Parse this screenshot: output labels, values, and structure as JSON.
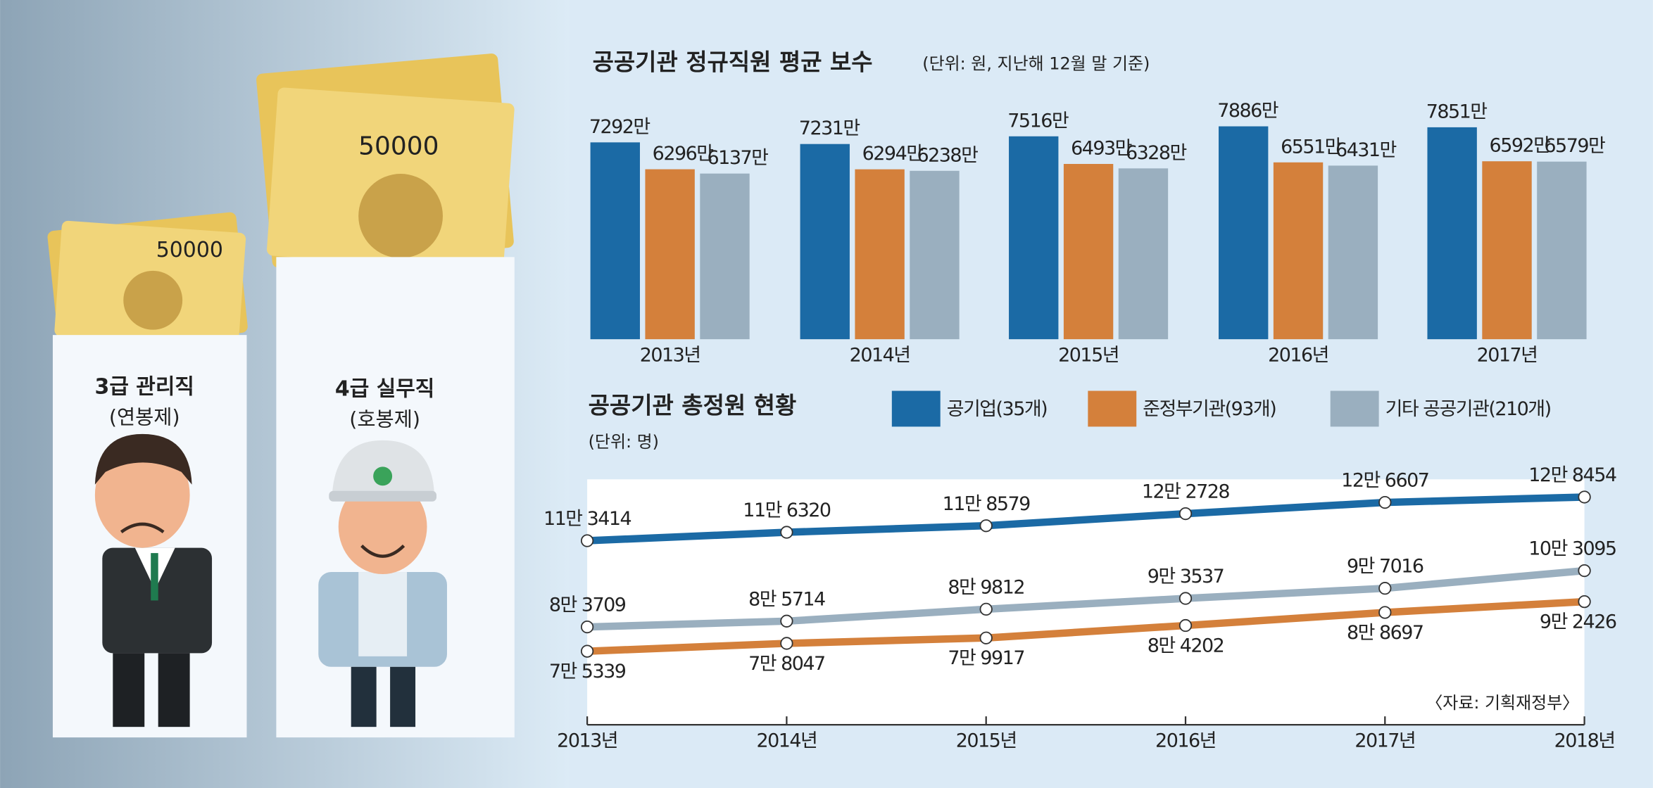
{
  "illustration": {
    "figures": [
      {
        "title": "3급 관리직",
        "subtitle": "(연봉제)"
      },
      {
        "title": "4급 실무직",
        "subtitle": "(호봉제)"
      }
    ]
  },
  "chart_data": [
    {
      "type": "bar",
      "title": "공공기관 정규직원 평균 보수",
      "subtitle": "(단위: 원, 지난해 12월 말 기준)",
      "categories": [
        "2013년",
        "2014년",
        "2015년",
        "2016년",
        "2017년"
      ],
      "series": [
        {
          "name": "공기업(35개)",
          "color": "#1b6aa5",
          "values": [
            7292,
            7231,
            7516,
            7886,
            7851
          ],
          "value_labels": [
            "7292만",
            "7231만",
            "7516만",
            "7886만",
            "7851만"
          ]
        },
        {
          "name": "준정부기관(93개)",
          "color": "#d4803b",
          "values": [
            6296,
            6294,
            6493,
            6551,
            6592
          ],
          "value_labels": [
            "6296만",
            "6294만",
            "6493만",
            "6551만",
            "6592만"
          ]
        },
        {
          "name": "기타 공공기관(210개)",
          "color": "#9aafbf",
          "values": [
            6137,
            6238,
            6328,
            6431,
            6579
          ],
          "value_labels": [
            "6137만",
            "6238만",
            "6328만",
            "6431만",
            "6579만"
          ]
        }
      ],
      "ylim": [
        0,
        8000
      ]
    },
    {
      "type": "line",
      "title": "공공기관 총정원 현황",
      "subtitle": "(단위: 명)",
      "categories": [
        "2013년",
        "2014년",
        "2015년",
        "2016년",
        "2017년",
        "2018년"
      ],
      "series": [
        {
          "color": "#1b6aa5",
          "values": [
            113414,
            116320,
            118579,
            122728,
            126607,
            128454
          ],
          "value_labels": [
            "11만 3414",
            "11만 6320",
            "11만 8579",
            "12만 2728",
            "12만 6607",
            "12만 8454"
          ]
        },
        {
          "color": "#d4803b",
          "values": [
            75339,
            78047,
            79917,
            84202,
            88697,
            92426
          ],
          "value_labels": [
            "7만 5339",
            "7만 8047",
            "7만 9917",
            "8만 4202",
            "8만 8697",
            "9만 2426"
          ]
        },
        {
          "color": "#9aafbf",
          "values": [
            83709,
            85714,
            89812,
            93537,
            97016,
            103095
          ],
          "value_labels": [
            "8만 3709",
            "8만 5714",
            "8만 9812",
            "9만 3537",
            "9만 7016",
            "10만 3095"
          ]
        }
      ],
      "ylim": [
        50000,
        140000
      ],
      "source": "〈자료: 기획재정부〉"
    }
  ]
}
